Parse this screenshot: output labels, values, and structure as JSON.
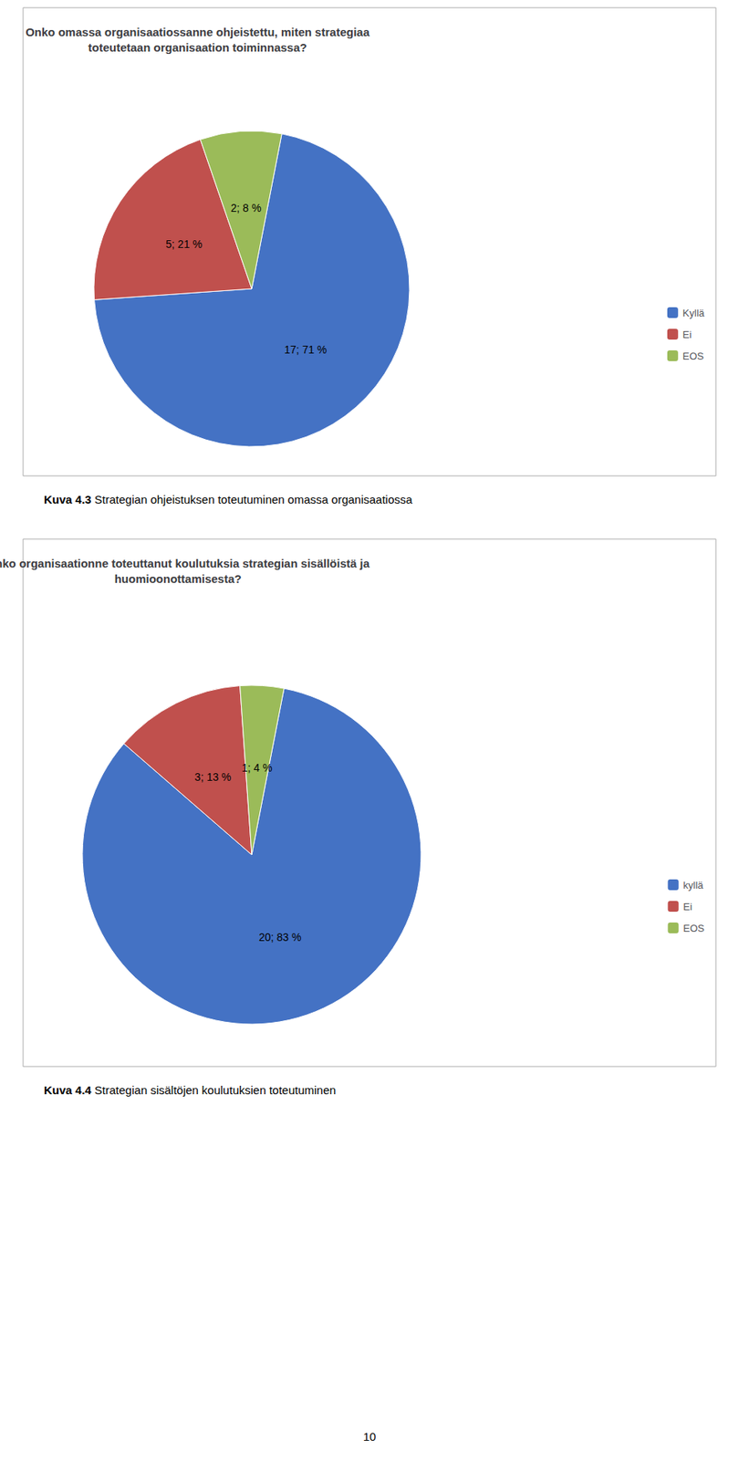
{
  "chart_data": [
    {
      "type": "pie",
      "title": "Onko omassa organisaatiossanne ohjeistettu, miten strategiaa\ntoteutetaan organisaation toiminnassa?",
      "categories": [
        "Kyllä",
        "Ei",
        "EOS"
      ],
      "values": [
        17,
        5,
        2
      ],
      "value_labels": [
        "17; 71 %",
        "5; 21 %",
        "2; 8 %"
      ],
      "colors": [
        "#4472C4",
        "#C0504D",
        "#9BBB59"
      ],
      "data_labels": true,
      "legend": "right",
      "annotations": [
        {
          "label": "Kuva 4.3",
          "text": "Strategian ohjeistuksen toteutuminen omassa organisaatiossa"
        }
      ]
    },
    {
      "type": "pie",
      "title": "Onko organisaationne toteuttanut koulutuksia strategian sisällöistä ja\nhuomioonottamisesta?",
      "categories": [
        "kyllä",
        "Ei",
        "EOS"
      ],
      "values": [
        20,
        3,
        1
      ],
      "value_labels": [
        "20; 83 %",
        "3; 13 %",
        "1; 4 %"
      ],
      "colors": [
        "#4472C4",
        "#C0504D",
        "#9BBB59"
      ],
      "data_labels": true,
      "legend": "right",
      "annotations": [
        {
          "label": "Kuva 4.4",
          "text": "Strategian sisältöjen koulutuksien toteutuminen"
        }
      ]
    }
  ],
  "annotations": [
    {
      "text": "10"
    }
  ]
}
